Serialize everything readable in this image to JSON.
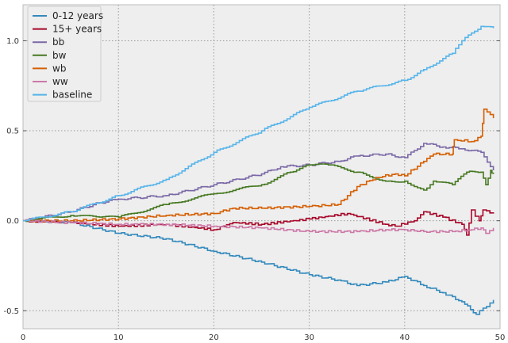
{
  "chart_data": {
    "type": "line",
    "title": "",
    "xlabel": "",
    "ylabel": "",
    "xlim": [
      0,
      50
    ],
    "ylim": [
      -0.6,
      1.2
    ],
    "grid": true,
    "legend_placement": "top-left",
    "xticks": [
      0,
      10,
      20,
      30,
      40,
      50
    ],
    "xtick_labels": [
      "0",
      "10",
      "20",
      "30",
      "40",
      "50"
    ],
    "yticks": [
      -0.5,
      0.0,
      0.5,
      1.0
    ],
    "ytick_labels": [
      "-0.5",
      "0.0",
      "0.5",
      "1.0"
    ],
    "series": [
      {
        "name": "0-12 years",
        "color": "#348abd",
        "x": [
          0,
          5,
          10,
          15,
          20,
          25,
          30,
          33,
          35,
          38,
          40,
          42,
          44,
          46,
          47.5,
          49.3
        ],
        "y": [
          0,
          -0.01,
          -0.07,
          -0.1,
          -0.17,
          -0.23,
          -0.3,
          -0.33,
          -0.36,
          -0.34,
          -0.31,
          -0.36,
          -0.4,
          -0.45,
          -0.52,
          -0.44
        ]
      },
      {
        "name": "15+ years",
        "color": "#a60628",
        "x": [
          0,
          5,
          10,
          15,
          20,
          22,
          25,
          30,
          34,
          38,
          39,
          41,
          42,
          44,
          46,
          46.5,
          47,
          47.8,
          48.2,
          49.3
        ],
        "y": [
          0,
          -0.01,
          -0.03,
          -0.02,
          -0.05,
          -0.01,
          -0.02,
          0.01,
          0.04,
          -0.02,
          -0.03,
          0,
          0.05,
          0.02,
          -0.02,
          -0.08,
          0.06,
          0,
          0.06,
          0.04
        ]
      },
      {
        "name": "bb",
        "color": "#7a68a6",
        "x": [
          0,
          5,
          8,
          10,
          15,
          20,
          25,
          27,
          30,
          33,
          35,
          38,
          40,
          42,
          44,
          46,
          48,
          49.3
        ],
        "y": [
          0,
          0.05,
          0.1,
          0.12,
          0.14,
          0.2,
          0.26,
          0.3,
          0.31,
          0.33,
          0.36,
          0.37,
          0.35,
          0.43,
          0.41,
          0.4,
          0.38,
          0.28
        ]
      },
      {
        "name": "bw",
        "color": "#467821",
        "x": [
          0,
          5,
          8,
          10,
          15,
          20,
          25,
          28,
          30,
          32,
          35,
          38,
          40,
          42,
          43,
          45,
          46.5,
          48,
          48.5,
          49,
          49.3
        ],
        "y": [
          0,
          0.03,
          0.02,
          0.02,
          0.09,
          0.15,
          0.2,
          0.27,
          0.31,
          0.31,
          0.27,
          0.22,
          0.22,
          0.17,
          0.22,
          0.2,
          0.27,
          0.27,
          0.2,
          0.28,
          0.26
        ]
      },
      {
        "name": "wb",
        "color": "#d55e00",
        "x": [
          0,
          5,
          10,
          15,
          20,
          22,
          25,
          30,
          33,
          35,
          37,
          39,
          40,
          42,
          43,
          45,
          45.2,
          47,
          48,
          48.3,
          49.3
        ],
        "y": [
          0,
          0,
          0.01,
          0.03,
          0.04,
          0.07,
          0.07,
          0.08,
          0.09,
          0.19,
          0.24,
          0.26,
          0.25,
          0.33,
          0.37,
          0.37,
          0.45,
          0.44,
          0.47,
          0.62,
          0.57
        ]
      },
      {
        "name": "ww",
        "color": "#cc79a7",
        "x": [
          0,
          5,
          10,
          15,
          20,
          25,
          30,
          35,
          38,
          40,
          42,
          45,
          47,
          48,
          48.5,
          49.3
        ],
        "y": [
          0,
          -0.01,
          -0.02,
          -0.02,
          -0.03,
          -0.04,
          -0.06,
          -0.06,
          -0.05,
          -0.05,
          -0.06,
          -0.06,
          -0.05,
          -0.04,
          -0.07,
          -0.04
        ]
      },
      {
        "name": "baseline",
        "color": "#56b4e9",
        "x": [
          0,
          5,
          10,
          15,
          20,
          25,
          30,
          35,
          40,
          42,
          45,
          46,
          48,
          49.3
        ],
        "y": [
          0,
          0.05,
          0.14,
          0.23,
          0.38,
          0.5,
          0.63,
          0.72,
          0.78,
          0.84,
          0.93,
          1.0,
          1.08,
          1.07
        ]
      }
    ]
  }
}
